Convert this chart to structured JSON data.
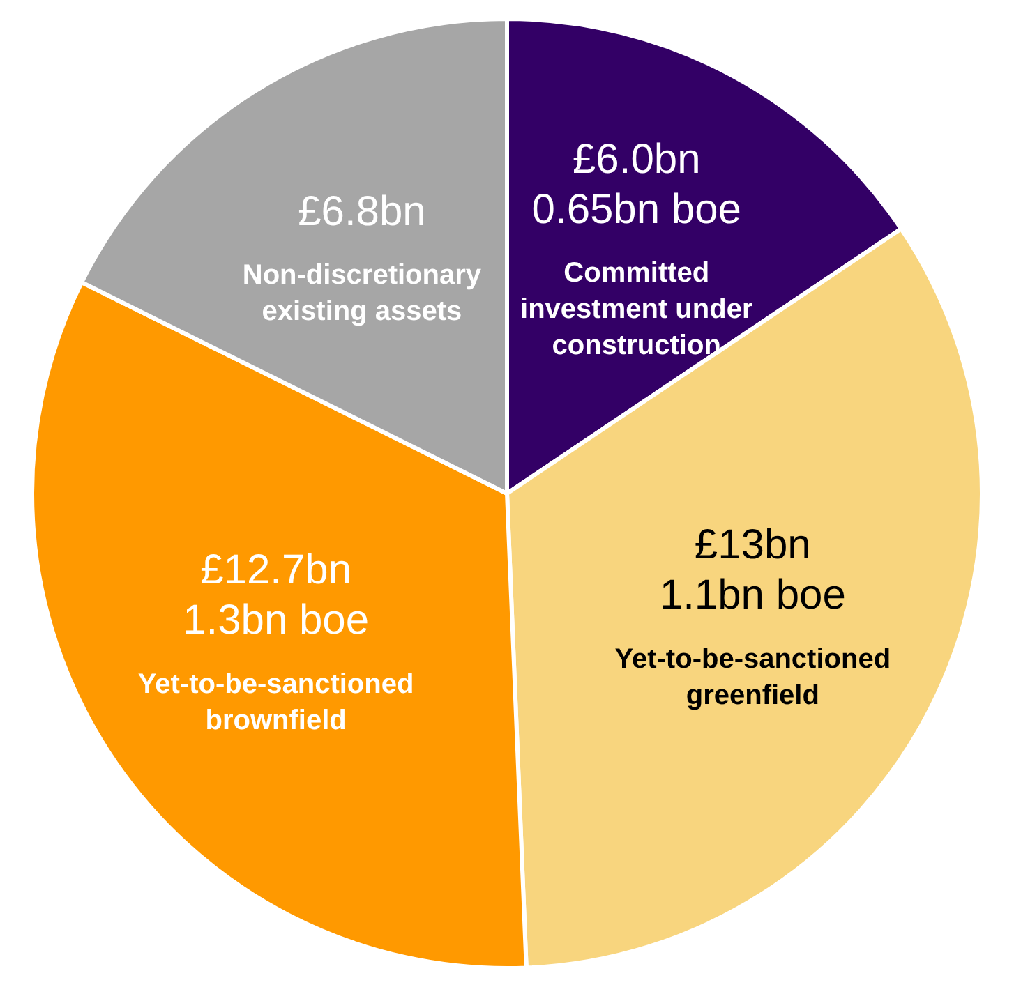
{
  "chart_data": {
    "type": "pie",
    "categories": [
      "Committed investment under construction",
      "Yet-to-be-sanctioned greenfield",
      "Yet-to-be-sanctioned brownfield",
      "Non-discretionary existing assets"
    ],
    "values": [
      6.0,
      13,
      12.7,
      6.8
    ],
    "value_labels": [
      "£6.0bn",
      "£13bn",
      "£12.7bn",
      "£6.8bn"
    ],
    "annotations": [
      "0.65bn boe",
      "1.1bn boe",
      "1.3bn boe"
    ],
    "colors": [
      "#330066",
      "#f8d57e",
      "#ff9900",
      "#a6a6a6"
    ],
    "legend": false
  }
}
